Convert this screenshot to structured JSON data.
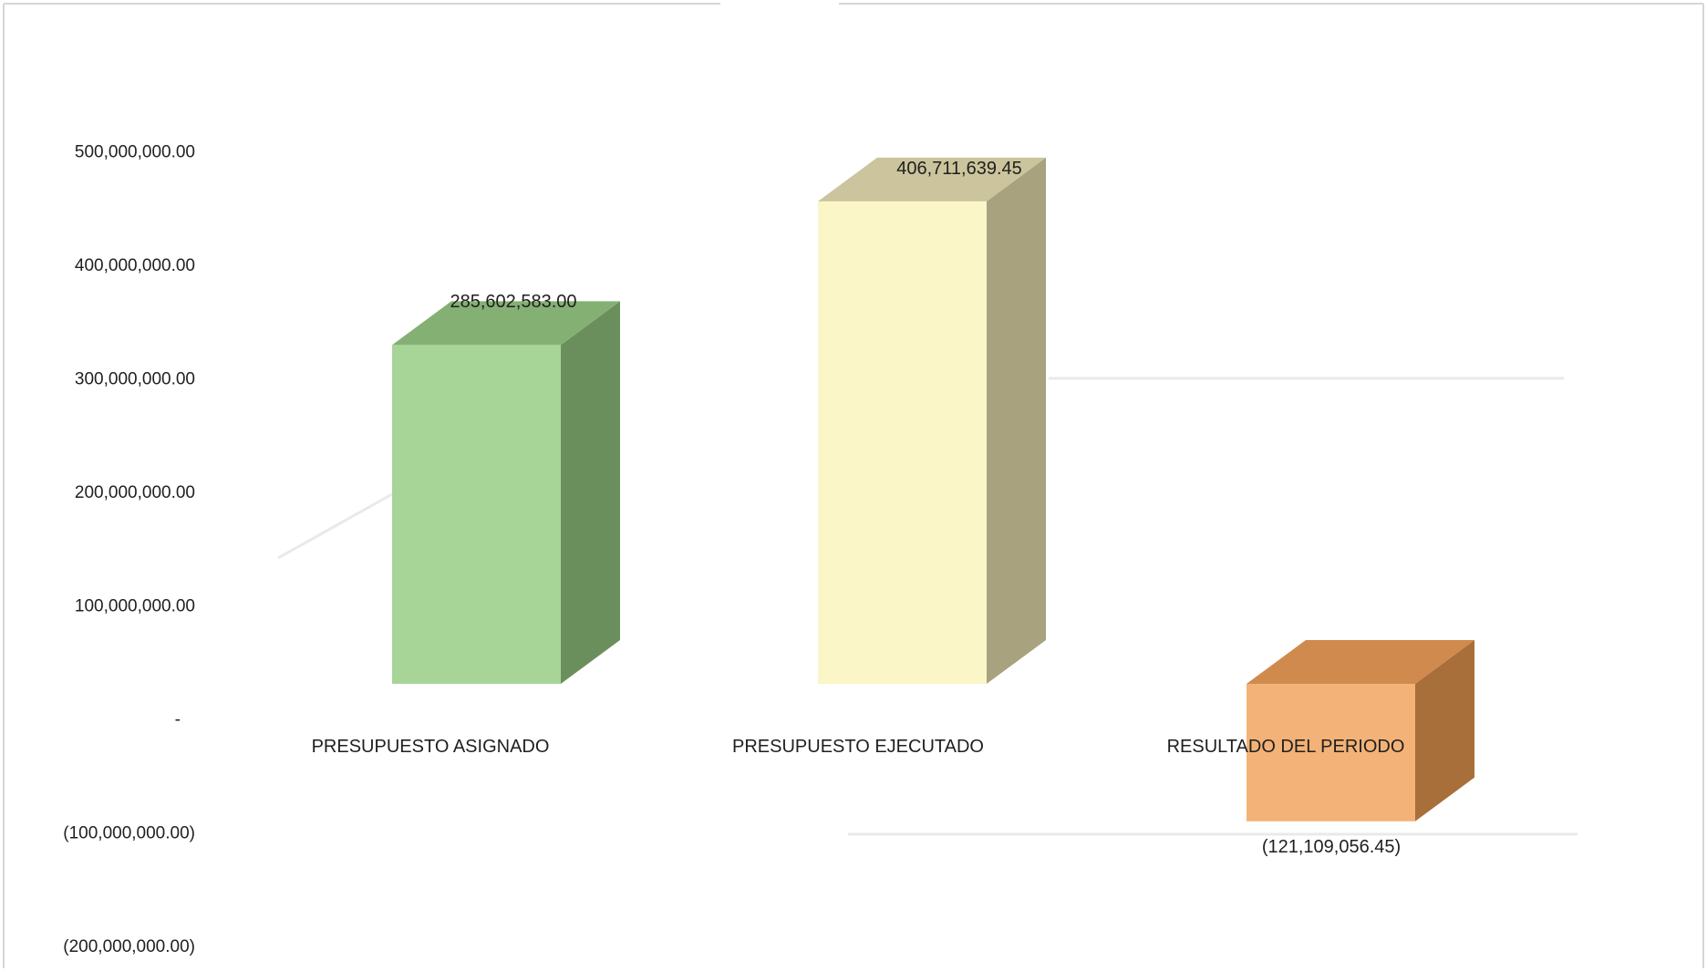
{
  "chart_data": {
    "type": "bar",
    "title": "",
    "xlabel": "",
    "ylabel": "",
    "categories": [
      "PRESUPUESTO ASIGNADO",
      "PRESUPUESTO EJECUTADO",
      "RESULTADO DEL PERIODO"
    ],
    "values": [
      285602583.0,
      406711639.45,
      -121109056.45
    ],
    "data_labels": [
      "285,602,583.00",
      "406,711,639.45",
      "(121,109,056.45)"
    ],
    "bar_colors": [
      {
        "front": "#a6d597",
        "side": "#6a8f5c",
        "top": "#84b074"
      },
      {
        "front": "#fbf6c8",
        "side": "#a8a27f",
        "top": "#cbc49c"
      },
      {
        "front": "#f3b277",
        "side": "#a86f3a",
        "top": "#d18a4d"
      }
    ],
    "ylim": [
      -200000000,
      500000000
    ],
    "yticks": [
      500000000,
      400000000,
      300000000,
      200000000,
      100000000,
      0,
      -100000000,
      -200000000
    ],
    "ytick_labels": [
      "500,000,000.00",
      "400,000,000.00",
      "300,000,000.00",
      "200,000,000.00",
      "100,000,000.00",
      "-",
      "(100,000,000.00)",
      "(200,000,000.00)"
    ],
    "style": "3d-column",
    "grid": false,
    "legend": "none"
  }
}
